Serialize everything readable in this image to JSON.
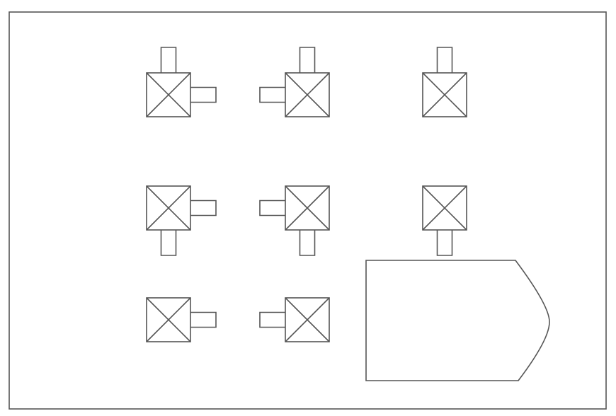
{
  "diagram": {
    "line_color": "#555555",
    "background": "#ffffff",
    "nodes": [
      {
        "name": "node-r1c1",
        "arms": [
          "top",
          "right"
        ]
      },
      {
        "name": "node-r1c2",
        "arms": [
          "top",
          "left"
        ]
      },
      {
        "name": "node-r1c3",
        "arms": [
          "top"
        ]
      },
      {
        "name": "node-r2c1",
        "arms": [
          "right",
          "bottom"
        ]
      },
      {
        "name": "node-r2c2",
        "arms": [
          "left",
          "bottom"
        ]
      },
      {
        "name": "node-r2c3",
        "arms": [
          "bottom"
        ]
      },
      {
        "name": "node-r3c1",
        "arms": [
          "right"
        ]
      },
      {
        "name": "node-r3c2",
        "arms": [
          "left"
        ]
      }
    ],
    "large_shape": {
      "name": "large-pentagon-shape",
      "kind": "arrow-tab-block"
    }
  }
}
